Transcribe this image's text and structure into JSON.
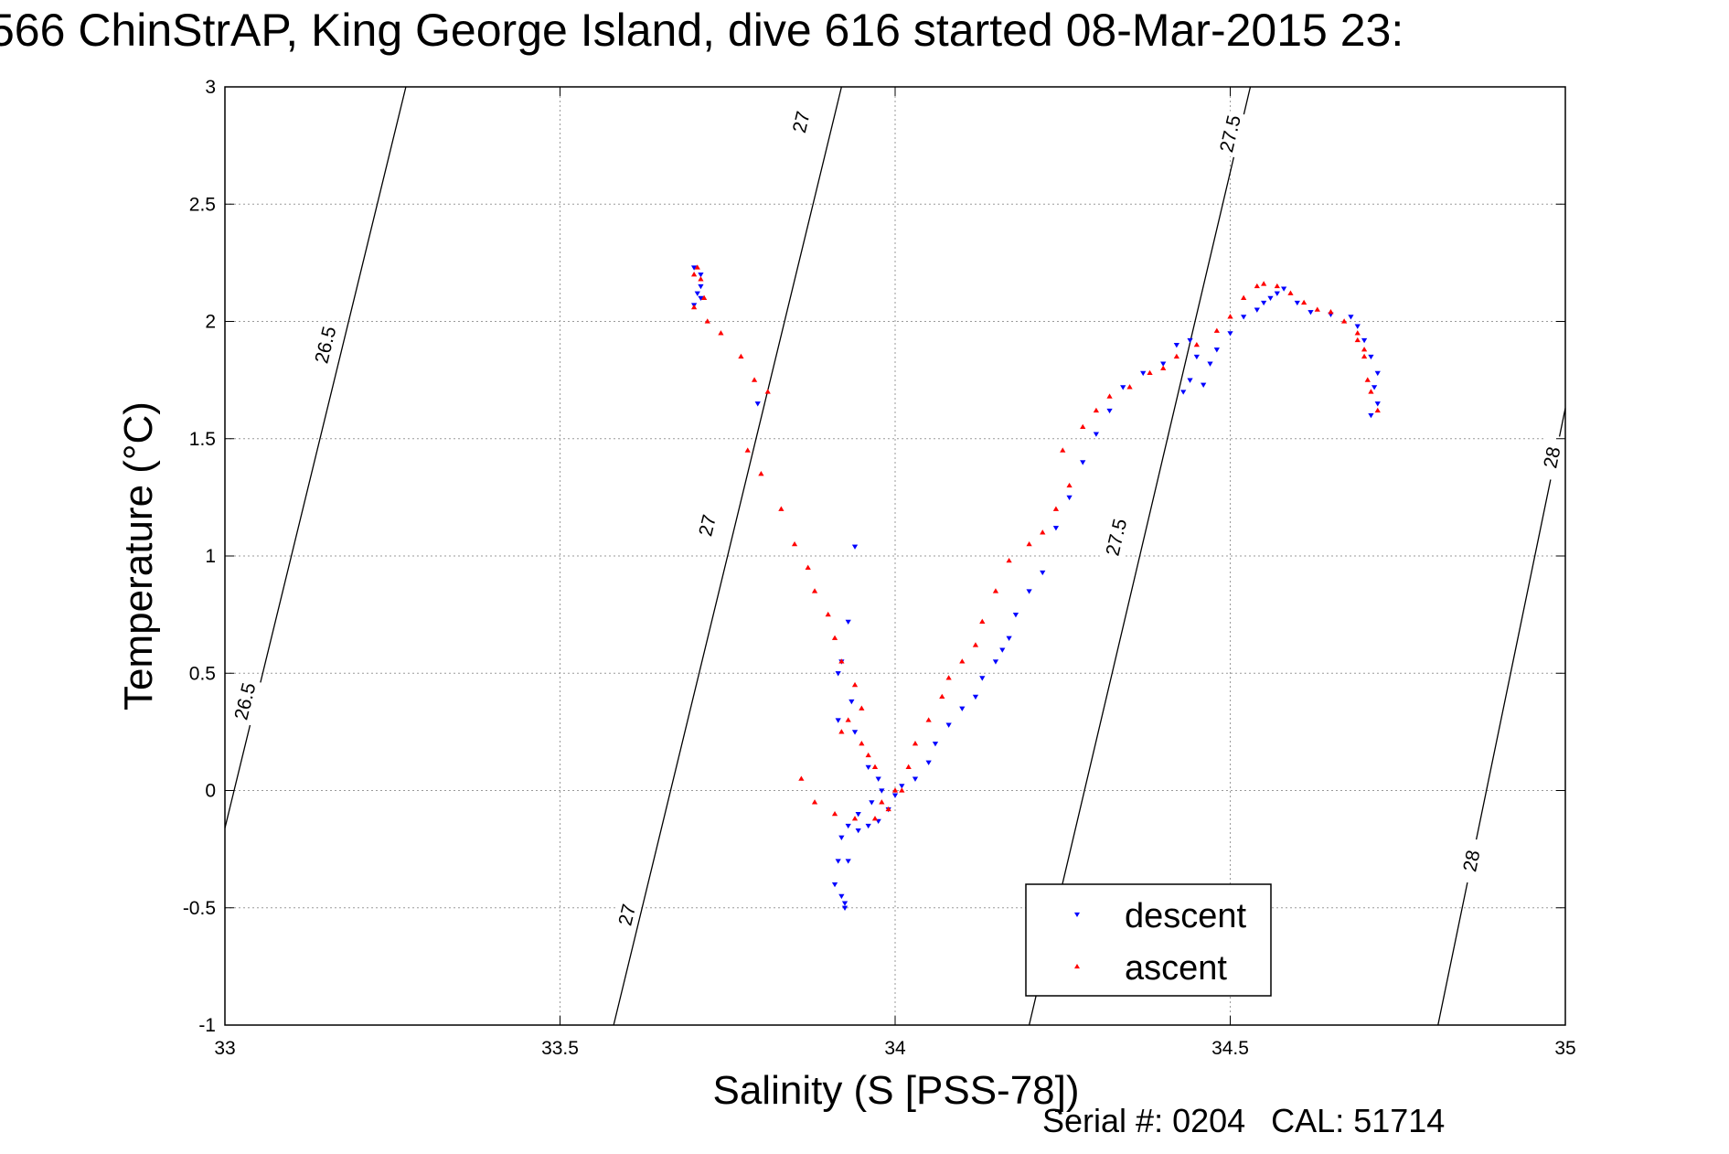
{
  "chart_data": {
    "type": "scatter",
    "title": "566 ChinStrAP, King George Island, dive 616 started 08-Mar-2015 23:",
    "xlabel": "Salinity (S [PSS-78])",
    "ylabel": "Temperature (°C)",
    "xlim": [
      33,
      35
    ],
    "ylim": [
      -1,
      3
    ],
    "xticks": [
      "33",
      "33.5",
      "34",
      "34.5",
      "35"
    ],
    "yticks": [
      "-1",
      "-0.5",
      "0",
      "0.5",
      "1",
      "1.5",
      "2",
      "2.5",
      "3"
    ],
    "grid": true,
    "legend_position": "lower-right",
    "isopycnals": [
      {
        "label": "26.5",
        "points": [
          [
            33.0,
            -0.16
          ],
          [
            33.27,
            3.0
          ]
        ],
        "label_at": [
          [
            33.15,
            1.9
          ],
          [
            33.03,
            0.38
          ]
        ]
      },
      {
        "label": "27",
        "points": [
          [
            33.58,
            -1.0
          ],
          [
            33.92,
            3.0
          ]
        ],
        "label_at": [
          [
            33.86,
            2.85
          ],
          [
            33.72,
            1.13
          ],
          [
            33.6,
            -0.53
          ]
        ]
      },
      {
        "label": "27.5",
        "points": [
          [
            34.2,
            -1.0
          ],
          [
            34.53,
            3.0
          ]
        ],
        "label_at": [
          [
            34.5,
            2.8
          ],
          [
            34.33,
            1.08
          ]
        ]
      },
      {
        "label": "28",
        "points": [
          [
            34.81,
            -1.0
          ],
          [
            35.0,
            1.63
          ]
        ],
        "label_at": [
          [
            34.98,
            1.42
          ],
          [
            34.86,
            -0.3
          ]
        ]
      }
    ],
    "series": [
      {
        "name": "descent",
        "color": "#0000ff",
        "marker": "triangle-down",
        "x": [
          33.7,
          33.71,
          33.71,
          33.71,
          33.7,
          33.705,
          33.795,
          33.94,
          33.93,
          33.92,
          33.915,
          33.935,
          33.915,
          33.94,
          33.96,
          33.975,
          33.98,
          33.965,
          33.945,
          33.93,
          33.92,
          33.915,
          33.91,
          33.92,
          33.925,
          33.925,
          33.93,
          33.945,
          33.96,
          33.975,
          33.99,
          34.0,
          34.01,
          34.03,
          34.05,
          34.06,
          34.08,
          34.1,
          34.12,
          34.13,
          34.15,
          34.16,
          34.17,
          34.18,
          34.2,
          34.22,
          34.24,
          34.26,
          34.28,
          34.3,
          34.32,
          34.34,
          34.37,
          34.4,
          34.42,
          34.44,
          34.45,
          34.44,
          34.43,
          34.46,
          34.47,
          34.48,
          34.5,
          34.52,
          34.54,
          34.55,
          34.56,
          34.57,
          34.58,
          34.6,
          34.62,
          34.65,
          34.68,
          34.69,
          34.7,
          34.71,
          34.72,
          34.715,
          34.72,
          34.71
        ],
        "y": [
          2.23,
          2.2,
          2.15,
          2.1,
          2.07,
          2.12,
          1.65,
          1.04,
          0.72,
          0.55,
          0.5,
          0.38,
          0.3,
          0.25,
          0.1,
          0.05,
          0.0,
          -0.05,
          -0.1,
          -0.15,
          -0.2,
          -0.3,
          -0.4,
          -0.45,
          -0.48,
          -0.5,
          -0.3,
          -0.17,
          -0.15,
          -0.13,
          -0.08,
          -0.02,
          0.02,
          0.05,
          0.12,
          0.2,
          0.28,
          0.35,
          0.4,
          0.48,
          0.55,
          0.6,
          0.65,
          0.75,
          0.85,
          0.93,
          1.12,
          1.25,
          1.4,
          1.52,
          1.62,
          1.72,
          1.78,
          1.82,
          1.9,
          1.92,
          1.85,
          1.75,
          1.7,
          1.73,
          1.82,
          1.88,
          1.95,
          2.02,
          2.05,
          2.08,
          2.1,
          2.12,
          2.14,
          2.08,
          2.04,
          2.03,
          2.02,
          1.98,
          1.92,
          1.85,
          1.78,
          1.72,
          1.65,
          1.6
        ]
      },
      {
        "name": "ascent",
        "color": "#ff0000",
        "marker": "triangle-up",
        "x": [
          33.7,
          33.705,
          33.71,
          33.715,
          33.7,
          33.72,
          33.74,
          33.77,
          33.79,
          33.81,
          33.78,
          33.8,
          33.83,
          33.85,
          33.87,
          33.88,
          33.9,
          33.91,
          33.92,
          33.94,
          33.95,
          33.93,
          33.92,
          33.95,
          33.96,
          33.97,
          34.0,
          33.98,
          33.86,
          33.88,
          33.91,
          33.94,
          33.97,
          33.99,
          34.01,
          34.02,
          34.03,
          34.05,
          34.07,
          34.08,
          34.1,
          34.12,
          34.13,
          34.15,
          34.17,
          34.2,
          34.22,
          34.24,
          34.26,
          34.25,
          34.28,
          34.3,
          34.32,
          34.35,
          34.38,
          34.4,
          34.42,
          34.45,
          34.48,
          34.5,
          34.52,
          34.54,
          34.55,
          34.57,
          34.59,
          34.61,
          34.63,
          34.65,
          34.67,
          34.69,
          34.7,
          34.705,
          34.69,
          34.7,
          34.71,
          34.72
        ],
        "y": [
          2.2,
          2.23,
          2.18,
          2.1,
          2.06,
          2.0,
          1.95,
          1.85,
          1.75,
          1.7,
          1.45,
          1.35,
          1.2,
          1.05,
          0.95,
          0.85,
          0.75,
          0.65,
          0.55,
          0.45,
          0.35,
          0.3,
          0.25,
          0.2,
          0.15,
          0.1,
          0.0,
          -0.05,
          0.05,
          -0.05,
          -0.1,
          -0.12,
          -0.12,
          -0.08,
          0.0,
          0.1,
          0.2,
          0.3,
          0.4,
          0.48,
          0.55,
          0.62,
          0.72,
          0.85,
          0.98,
          1.05,
          1.1,
          1.2,
          1.3,
          1.45,
          1.55,
          1.62,
          1.68,
          1.72,
          1.78,
          1.8,
          1.85,
          1.9,
          1.96,
          2.02,
          2.1,
          2.15,
          2.16,
          2.15,
          2.12,
          2.08,
          2.05,
          2.04,
          2.0,
          1.92,
          1.85,
          1.75,
          1.95,
          1.88,
          1.7,
          1.62
        ]
      }
    ]
  },
  "footer": {
    "serial": "Serial #: 0204",
    "cal": "CAL: 51714"
  }
}
